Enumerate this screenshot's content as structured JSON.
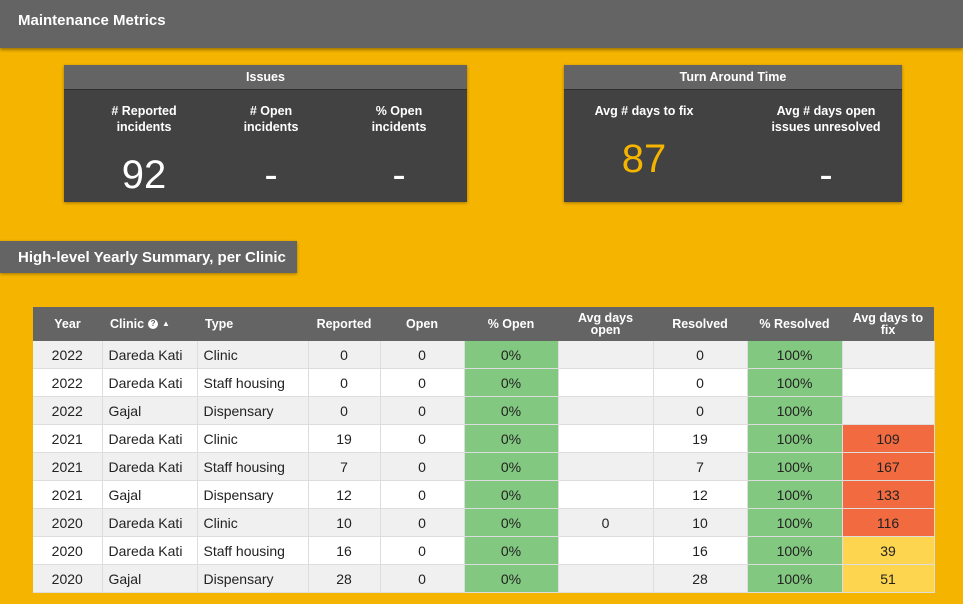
{
  "header": {
    "title": "Maintenance Metrics"
  },
  "issues_card": {
    "title": "Issues",
    "metrics": [
      {
        "label": "# Reported incidents",
        "value": "92"
      },
      {
        "label": "# Open incidents",
        "value": "-"
      },
      {
        "label": "% Open incidents",
        "value": "-"
      }
    ]
  },
  "turnaround_card": {
    "title": "Turn Around Time",
    "metrics": [
      {
        "label": "Avg # days to fix",
        "value": "87"
      },
      {
        "label": "Avg # days open issues unresolved",
        "value": "-"
      }
    ]
  },
  "colors": {
    "background": "#f4b400",
    "highlight_value": "#f4b400",
    "green_cell": "#82c880",
    "orange_cell": "#f26a40",
    "yellow_cell": "#fdd54f"
  },
  "summary": {
    "title": "High-level Yearly Summary, per Clinic",
    "columns": [
      "Year",
      "Clinic",
      "Type",
      "Reported",
      "Open",
      "% Open",
      "Avg days open",
      "Resolved",
      "% Resolved",
      "Avg days to fix"
    ],
    "sorted_column": "Clinic",
    "rows": [
      [
        "2022",
        "Dareda Kati",
        "Clinic",
        "0",
        "0",
        "0%",
        "",
        "0",
        "100%",
        ""
      ],
      [
        "2022",
        "Dareda Kati",
        "Staff housing",
        "0",
        "0",
        "0%",
        "",
        "0",
        "100%",
        ""
      ],
      [
        "2022",
        "Gajal",
        "Dispensary",
        "0",
        "0",
        "0%",
        "",
        "0",
        "100%",
        ""
      ],
      [
        "2021",
        "Dareda Kati",
        "Clinic",
        "19",
        "0",
        "0%",
        "",
        "19",
        "100%",
        "109"
      ],
      [
        "2021",
        "Dareda Kati",
        "Staff housing",
        "7",
        "0",
        "0%",
        "",
        "7",
        "100%",
        "167"
      ],
      [
        "2021",
        "Gajal",
        "Dispensary",
        "12",
        "0",
        "0%",
        "",
        "12",
        "100%",
        "133"
      ],
      [
        "2020",
        "Dareda Kati",
        "Clinic",
        "10",
        "0",
        "0%",
        "0",
        "10",
        "100%",
        "116"
      ],
      [
        "2020",
        "Dareda Kati",
        "Staff housing",
        "16",
        "0",
        "0%",
        "",
        "16",
        "100%",
        "39"
      ],
      [
        "2020",
        "Gajal",
        "Dispensary",
        "28",
        "0",
        "0%",
        "",
        "28",
        "100%",
        "51"
      ]
    ],
    "fix_cell_colors": [
      "",
      "",
      "",
      "orange",
      "orange",
      "orange",
      "orange",
      "yellow",
      "yellow"
    ]
  }
}
